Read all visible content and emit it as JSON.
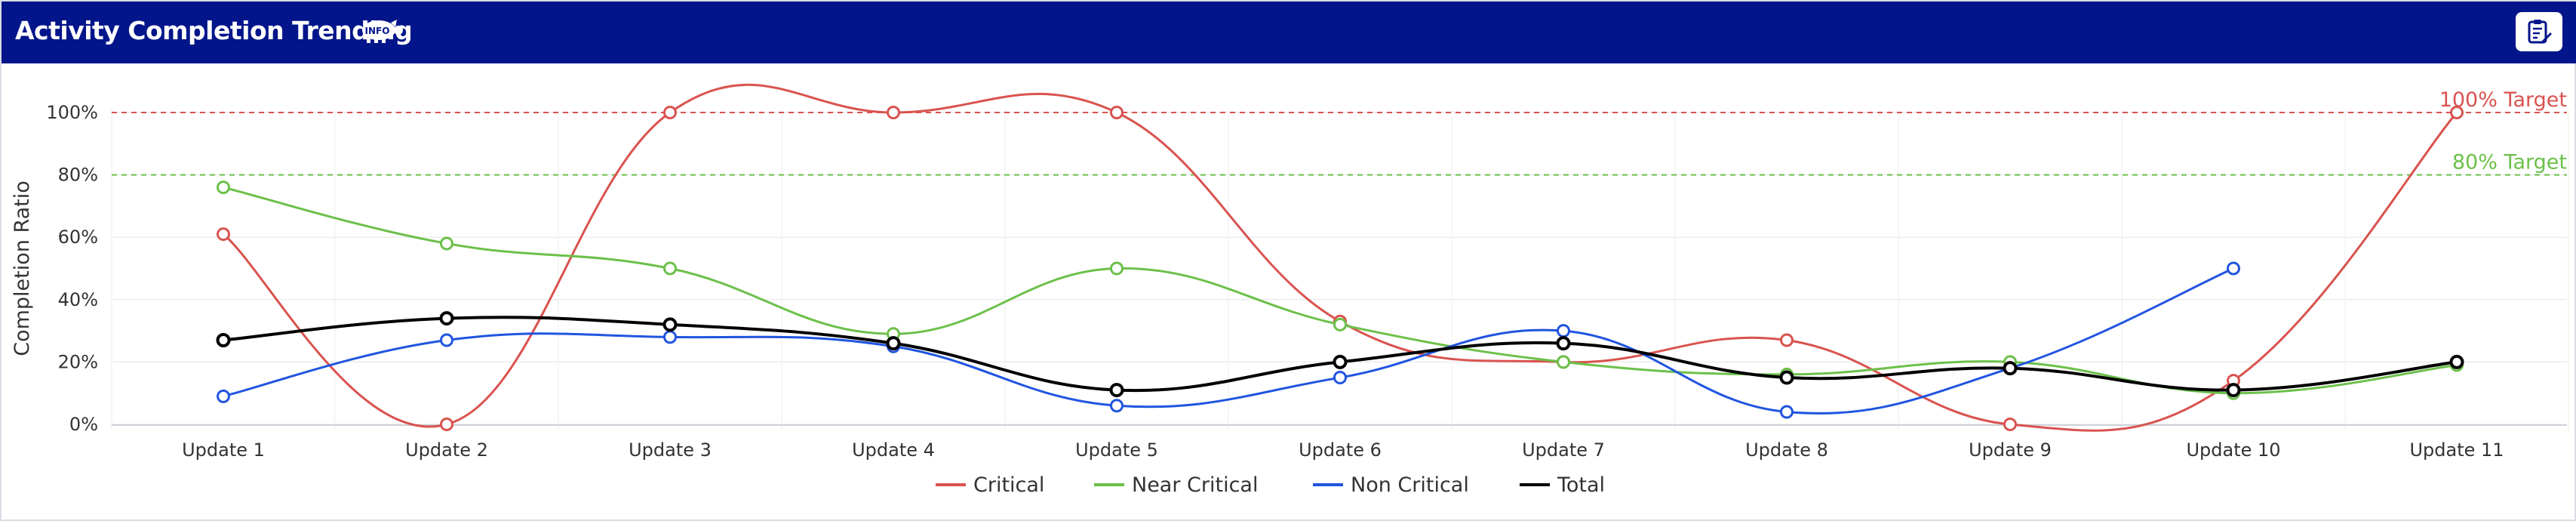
{
  "header": {
    "title": "Activity Completion Trending",
    "info_badge_text": "INFO",
    "info_icon": "pig-info-icon",
    "notes_icon": "clipboard-edit-icon"
  },
  "chart_data": {
    "type": "line",
    "ylabel": "Completion Ratio",
    "ylim": [
      0,
      100
    ],
    "yticks": [
      "0%",
      "20%",
      "40%",
      "60%",
      "80%",
      "100%"
    ],
    "grid": true,
    "legend_position": "bottom-center",
    "categories": [
      "Update 1",
      "Update 2",
      "Update 3",
      "Update 4",
      "Update 5",
      "Update 6",
      "Update 7",
      "Update 8",
      "Update 9",
      "Update 10",
      "Update 11"
    ],
    "targets": [
      {
        "label": "100% Target",
        "value": 100,
        "color": "#d9534f"
      },
      {
        "label": "80% Target",
        "value": 80,
        "color": "#6cc04a"
      }
    ],
    "series": [
      {
        "name": "Critical",
        "color": "#d9534f",
        "values": [
          61,
          0,
          100,
          100,
          100,
          33,
          20,
          27,
          0,
          14,
          100
        ]
      },
      {
        "name": "Near Critical",
        "color": "#6cc04a",
        "values": [
          76,
          58,
          50,
          29,
          50,
          32,
          20,
          16,
          20,
          10,
          19
        ]
      },
      {
        "name": "Non Critical",
        "color": "#2155e0",
        "values": [
          9,
          27,
          28,
          25,
          6,
          15,
          30,
          4,
          18,
          50,
          null
        ]
      },
      {
        "name": "Total",
        "color": "#000000",
        "values": [
          27,
          34,
          32,
          26,
          11,
          20,
          26,
          15,
          18,
          11,
          20
        ]
      }
    ]
  }
}
